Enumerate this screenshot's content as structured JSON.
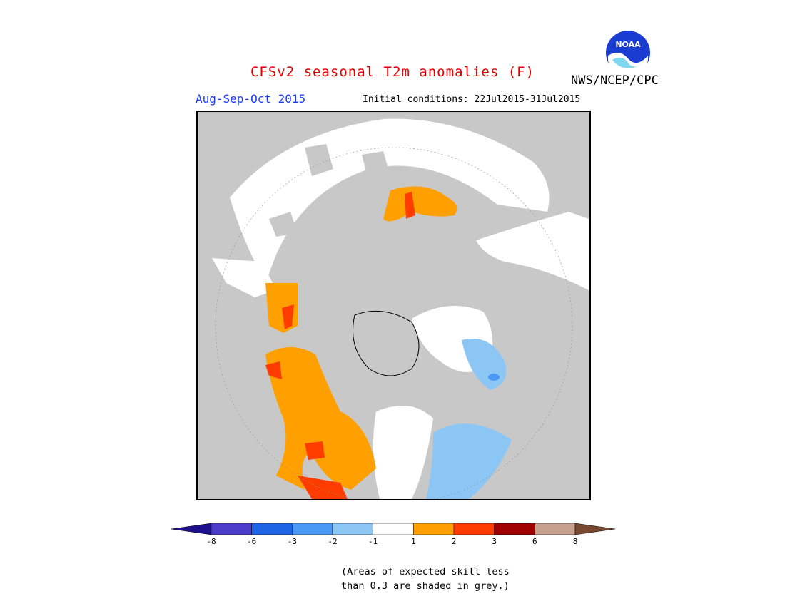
{
  "header": {
    "title": "CFSv2 seasonal T2m anomalies (F)",
    "org": "NWS/NCEP/CPC",
    "period": "Aug-Sep-Oct 2015",
    "initial_conditions": "Initial conditions: 22Jul2015-31Jul2015"
  },
  "logo": {
    "text": "NOAA"
  },
  "colorbar": {
    "colors": [
      "#1e0f8c",
      "#4b3ccc",
      "#1e64e6",
      "#4a9af5",
      "#8cc6f5",
      "#ffffff",
      "#ffa000",
      "#ff3c00",
      "#a00000",
      "#c8a090",
      "#784830"
    ],
    "ticks": [
      "-8",
      "-6",
      "-3",
      "-2",
      "-1",
      "1",
      "2",
      "3",
      "6",
      "8"
    ]
  },
  "footnote": {
    "line1": "(Areas of expected skill less",
    "line2": "than 0.3 are shaded in grey.)"
  },
  "map_colors": {
    "background": "#c8c8c8",
    "white": "#ffffff",
    "orange": "#ffa000",
    "red": "#ff3c00",
    "lightblue": "#8cc6f5",
    "blue": "#4a9af5"
  }
}
